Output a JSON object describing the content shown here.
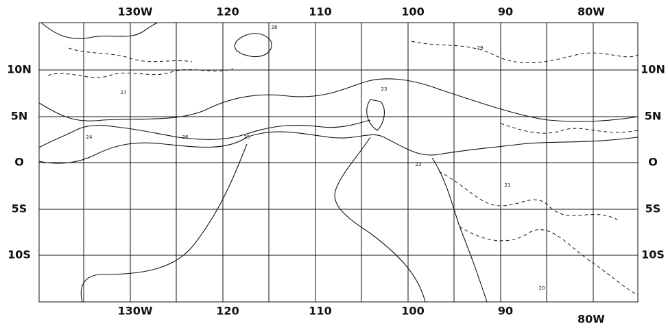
{
  "top_labels": [
    "130W",
    "120",
    "110",
    "100",
    "90",
    "80W"
  ],
  "bottom_labels": [
    "130W",
    "120",
    "110",
    "100",
    "90",
    "80W"
  ],
  "left_labels": [
    "10N",
    "5N",
    "O",
    "5S",
    "10S"
  ],
  "right_labels": [
    "10N",
    "5N",
    "O",
    "5S",
    "10S"
  ],
  "contour_labels": [
    "27",
    "28",
    "26",
    "24",
    "25",
    "23",
    "22",
    "21",
    "20",
    "29"
  ]
}
